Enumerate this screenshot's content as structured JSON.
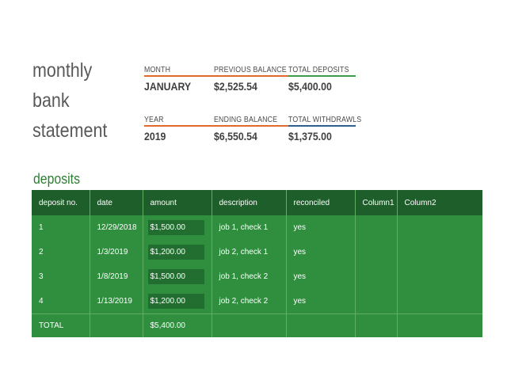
{
  "title": {
    "line1": "monthly",
    "line2": "bank",
    "line3": "statement"
  },
  "summary": {
    "month": {
      "label": "MONTH",
      "value": "JANUARY"
    },
    "previous_balance": {
      "label": "PREVIOUS BALANCE",
      "value": "$2,525.54"
    },
    "total_deposits": {
      "label": "TOTAL DEPOSITS",
      "value": "$5,400.00"
    },
    "year": {
      "label": "YEAR",
      "value": "2019"
    },
    "ending_balance": {
      "label": "ENDING BALANCE",
      "value": "$6,550.54"
    },
    "total_withdrawls": {
      "label": "TOTAL WITHDRAWLS",
      "value": "$1,375.00"
    }
  },
  "deposits": {
    "section_title": "deposits",
    "columns": [
      "deposit no.",
      "date",
      "amount",
      "description",
      "reconciled",
      "Column1",
      "Column2"
    ],
    "rows": [
      {
        "no": "1",
        "date": "12/29/2018",
        "amount": "$1,500.00",
        "description": "job 1, check 1",
        "reconciled": "yes"
      },
      {
        "no": "2",
        "date": "1/3/2019",
        "amount": "$1,200.00",
        "description": "job 2, check 1",
        "reconciled": "yes"
      },
      {
        "no": "3",
        "date": "1/8/2019",
        "amount": "$1,500.00",
        "description": "job 1, check 2",
        "reconciled": "yes"
      },
      {
        "no": "4",
        "date": "1/13/2019",
        "amount": "$1,200.00",
        "description": "job 2, check 2",
        "reconciled": "yes"
      }
    ],
    "total": {
      "label": "TOTAL",
      "amount": "$5,400.00"
    }
  },
  "colors": {
    "orange_rule": "#e06a2b",
    "green_rule": "#3e9a4c",
    "blue_rule": "#2f5f8a",
    "header_bg": "#1e5e2a",
    "row_bg": "#2f8f3f",
    "section_title": "#2e7d32"
  }
}
